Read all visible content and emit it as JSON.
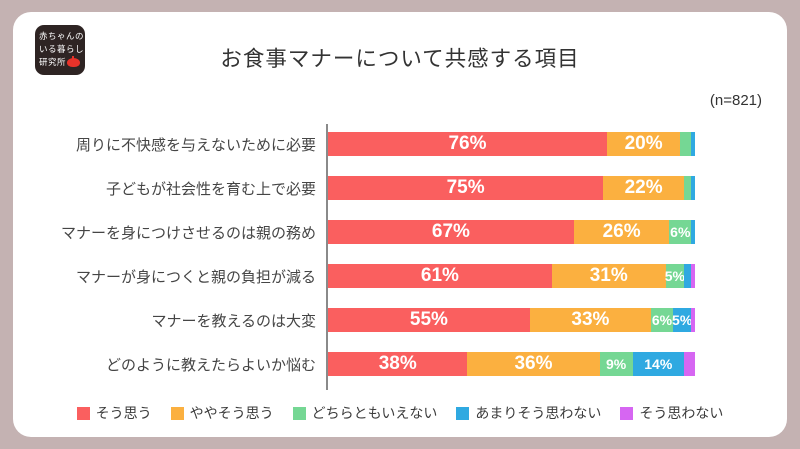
{
  "logo": {
    "line1": "赤ちゃんの",
    "line2": "いる暮らし",
    "line3": "研究所",
    "bg_color": "#2e2423",
    "apple_icon_color": "#e8332a"
  },
  "title": "お食事マナーについて共感する項目",
  "sample_label": "(n=821)",
  "colors": {
    "page_border": "#c4b2b2",
    "card_background": "#ffffff"
  },
  "chart_data": {
    "type": "bar",
    "subtype": "horizontal-stacked",
    "title": "お食事マナーについて共感する項目",
    "sample_size": "(n=821)",
    "unit": "percent",
    "xlim": [
      0,
      100
    ],
    "grid": false,
    "legend_position": "bottom",
    "series": [
      {
        "name": "そう思う",
        "color": "#fa5f5f"
      },
      {
        "name": "ややそう思う",
        "color": "#fbb040"
      },
      {
        "name": "どちらともいえない",
        "color": "#75d794"
      },
      {
        "name": "あまりそう思わない",
        "color": "#2fa9e1"
      },
      {
        "name": "そう思わない",
        "color": "#d666f2"
      }
    ],
    "rows": [
      {
        "category": "周りに不快感を与えないために必要",
        "values": [
          76,
          20,
          3,
          1,
          0
        ],
        "labels": [
          "76%",
          "20%",
          "",
          "",
          ""
        ]
      },
      {
        "category": "子どもが社会性を育む上で必要",
        "values": [
          75,
          22,
          2,
          1,
          0
        ],
        "labels": [
          "75%",
          "22%",
          "",
          "",
          ""
        ]
      },
      {
        "category": "マナーを身につけさせるのは親の務め",
        "values": [
          67,
          26,
          6,
          1,
          0
        ],
        "labels": [
          "67%",
          "26%",
          "6%",
          "",
          ""
        ]
      },
      {
        "category": "マナーが身につくと親の負担が減る",
        "values": [
          61,
          31,
          5,
          2,
          1
        ],
        "labels": [
          "61%",
          "31%",
          "5%",
          "",
          ""
        ]
      },
      {
        "category": "マナーを教えるのは大変",
        "values": [
          55,
          33,
          6,
          5,
          1
        ],
        "labels": [
          "55%",
          "33%",
          "6%",
          "5%",
          ""
        ]
      },
      {
        "category": "どのように教えたらよいか悩む",
        "values": [
          38,
          36,
          9,
          14,
          3
        ],
        "labels": [
          "38%",
          "36%",
          "9%",
          "14%",
          ""
        ]
      }
    ]
  }
}
